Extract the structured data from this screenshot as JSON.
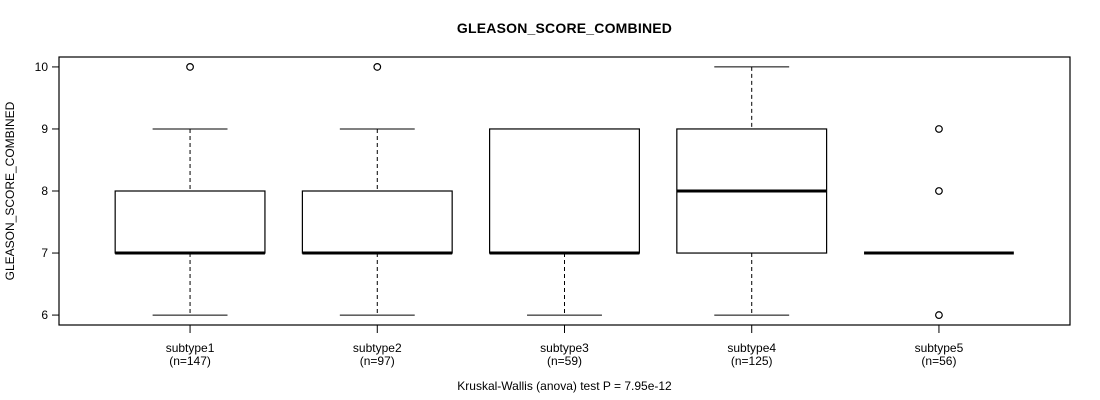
{
  "page": {
    "background": "#ffffff"
  },
  "chart_data": {
    "type": "boxplot",
    "title": "GLEASON_SCORE_COMBINED",
    "ylabel": "GLEASON_SCORE_COMBINED",
    "xlabel": "",
    "footer": "Kruskal-Wallis (anova) test P = 7.95e-12",
    "ylim": [
      5.84,
      10.16
    ],
    "yticks": [
      6,
      7,
      8,
      9,
      10
    ],
    "grid": false,
    "legend": "none",
    "colors": {
      "stroke": "#000000",
      "box_fill": "#ffffff",
      "background": "#ffffff"
    },
    "groups": [
      {
        "label": "subtype1",
        "n_label": "(n=147)",
        "n": 147,
        "whisker_low": 6,
        "q1": 7,
        "median": 7,
        "q3": 8,
        "whisker_high": 9,
        "outliers": [
          10
        ]
      },
      {
        "label": "subtype2",
        "n_label": "(n=97)",
        "n": 97,
        "whisker_low": 6,
        "q1": 7,
        "median": 7,
        "q3": 8,
        "whisker_high": 9,
        "outliers": [
          10
        ]
      },
      {
        "label": "subtype3",
        "n_label": "(n=59)",
        "n": 59,
        "whisker_low": 6,
        "q1": 7,
        "median": 7,
        "q3": 9,
        "whisker_high": 9,
        "outliers": []
      },
      {
        "label": "subtype4",
        "n_label": "(n=125)",
        "n": 125,
        "whisker_low": 6,
        "q1": 7,
        "median": 8,
        "q3": 9,
        "whisker_high": 10,
        "outliers": []
      },
      {
        "label": "subtype5",
        "n_label": "(n=56)",
        "n": 56,
        "whisker_low": 7,
        "q1": 7,
        "median": 7,
        "q3": 7,
        "whisker_high": 7,
        "outliers": [
          9,
          8,
          6
        ]
      }
    ]
  }
}
